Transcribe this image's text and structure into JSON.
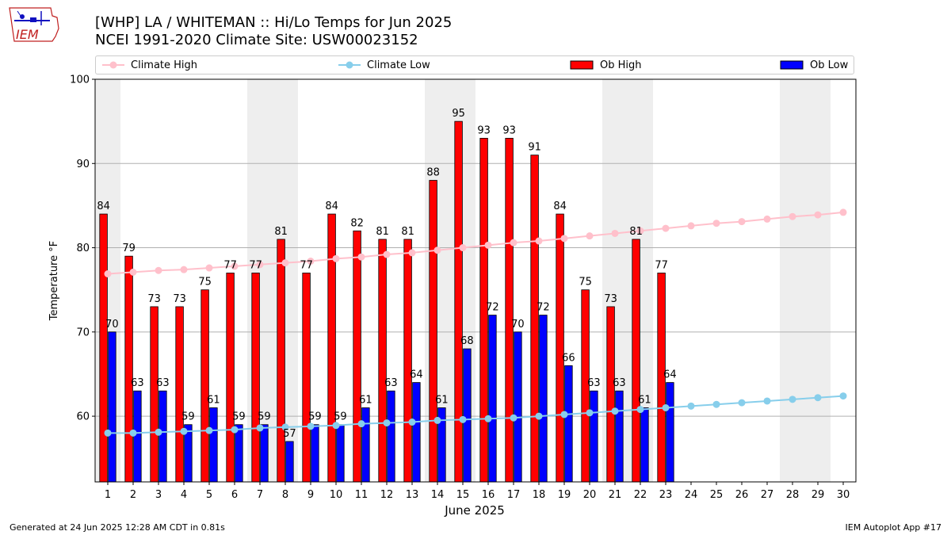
{
  "header": {
    "title_line1": "[WHP] LA / WHITEMAN :: Hi/Lo Temps for Jun 2025",
    "title_line2": "NCEI 1991-2020 Climate Site: USW00023152",
    "logo_text": "IEM"
  },
  "legend": {
    "climate_high": "Climate High",
    "climate_low": "Climate Low",
    "ob_high": "Ob High",
    "ob_low": "Ob Low"
  },
  "colors": {
    "ob_high": "#ff0000",
    "ob_low": "#0000ff",
    "climate_high": "#ffc0cb",
    "climate_low": "#87ceeb",
    "weekend_shade": "#eeeeee",
    "grid": "#b0b0b0"
  },
  "chart_data": {
    "type": "bar",
    "title": "[WHP] LA / WHITEMAN :: Hi/Lo Temps for Jun 2025",
    "subtitle": "NCEI 1991-2020 Climate Site: USW00023152",
    "xlabel": "June 2025",
    "ylabel": "Temperature °F",
    "ylim": [
      52.2,
      100
    ],
    "yticks": [
      60,
      70,
      80,
      90,
      100
    ],
    "grid": "horizontal",
    "legend_position": "top",
    "days": [
      1,
      2,
      3,
      4,
      5,
      6,
      7,
      8,
      9,
      10,
      11,
      12,
      13,
      14,
      15,
      16,
      17,
      18,
      19,
      20,
      21,
      22,
      23,
      24,
      25,
      26,
      27,
      28,
      29,
      30
    ],
    "shaded_days": [
      1,
      7,
      8,
      14,
      15,
      21,
      22,
      28,
      29
    ],
    "series": [
      {
        "name": "Ob High",
        "kind": "bar",
        "values": [
          84,
          79,
          73,
          73,
          75,
          77,
          77,
          81,
          77,
          84,
          82,
          81,
          81,
          88,
          95,
          93,
          93,
          91,
          84,
          75,
          73,
          81,
          77
        ]
      },
      {
        "name": "Ob Low",
        "kind": "bar",
        "values": [
          70,
          63,
          63,
          59,
          61,
          59,
          59,
          57,
          59,
          59,
          61,
          63,
          64,
          61,
          68,
          72,
          70,
          72,
          66,
          63,
          63,
          61,
          64
        ]
      },
      {
        "name": "Climate High",
        "kind": "line",
        "values": [
          76.9,
          77.1,
          77.3,
          77.4,
          77.6,
          77.8,
          78.0,
          78.2,
          78.4,
          78.7,
          78.9,
          79.2,
          79.4,
          79.7,
          80.0,
          80.3,
          80.6,
          80.8,
          81.1,
          81.4,
          81.7,
          82.0,
          82.3,
          82.6,
          82.9,
          83.1,
          83.4,
          83.7,
          83.9,
          84.2
        ]
      },
      {
        "name": "Climate Low",
        "kind": "line",
        "values": [
          58.0,
          58.0,
          58.1,
          58.2,
          58.3,
          58.4,
          58.6,
          58.7,
          58.8,
          58.9,
          59.1,
          59.2,
          59.3,
          59.5,
          59.6,
          59.7,
          59.8,
          60.0,
          60.2,
          60.4,
          60.6,
          60.8,
          61.0,
          61.2,
          61.4,
          61.6,
          61.8,
          62.0,
          62.2,
          62.4
        ]
      }
    ]
  },
  "footer": {
    "left": "Generated at 24 Jun 2025 12:28 AM CDT in 0.81s",
    "right": "IEM Autoplot App #17"
  }
}
